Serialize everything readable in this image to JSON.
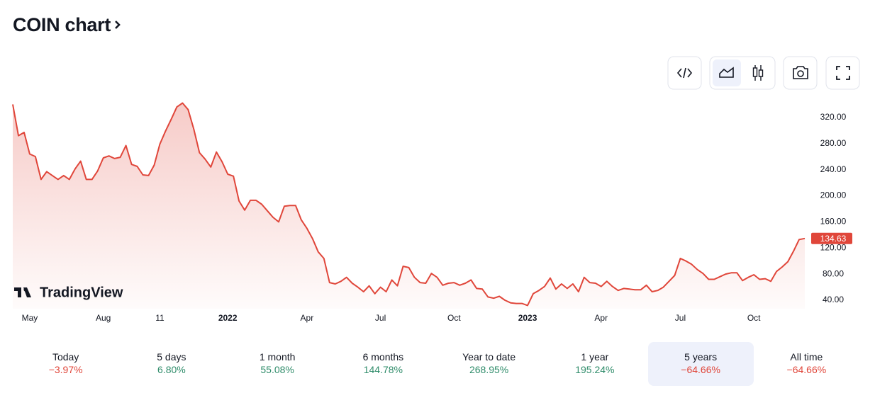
{
  "header": {
    "title": "COIN chart"
  },
  "branding": "TradingView",
  "chart_data": {
    "type": "area",
    "color": "#e0463a",
    "categories": [
      null,
      null,
      null,
      "May",
      null,
      null,
      null,
      null,
      null,
      null,
      null,
      null,
      null,
      null,
      null,
      null,
      "Aug",
      null,
      null,
      null,
      null,
      null,
      null,
      null,
      null,
      null,
      "11",
      null,
      null,
      null,
      null,
      null,
      null,
      null,
      null,
      null,
      null,
      null,
      "2022",
      null,
      null,
      null,
      null,
      null,
      null,
      null,
      null,
      null,
      null,
      null,
      null,
      null,
      "Apr",
      null,
      null,
      null,
      null,
      null,
      null,
      null,
      null,
      null,
      null,
      null,
      null,
      "Jul",
      null,
      null,
      null,
      null,
      null,
      null,
      null,
      null,
      null,
      null,
      null,
      null,
      "Oct",
      null,
      null,
      null,
      null,
      null,
      null,
      null,
      null,
      null,
      null,
      null,
      null,
      "2023",
      null,
      null,
      null,
      null,
      null,
      null,
      null,
      null,
      null,
      null,
      null,
      null,
      "Apr",
      null,
      null,
      null,
      null,
      null,
      null,
      null,
      null,
      null,
      null,
      null,
      null,
      null,
      "Jul",
      null,
      null,
      null,
      null,
      null,
      null,
      null,
      null,
      null,
      null,
      null,
      null,
      "Oct",
      null,
      null,
      null,
      null,
      null,
      null,
      null,
      null,
      null
    ],
    "values": [
      340,
      292,
      297,
      264,
      260,
      225,
      237,
      231,
      225,
      231,
      225,
      241,
      253,
      225,
      225,
      238,
      258,
      261,
      257,
      259,
      277,
      248,
      245,
      232,
      231,
      247,
      279,
      299,
      317,
      336,
      342,
      332,
      302,
      266,
      256,
      244,
      267,
      252,
      233,
      230,
      192,
      178,
      193,
      193,
      187,
      177,
      167,
      160,
      184,
      185,
      185,
      163,
      150,
      134,
      114,
      104,
      67,
      65,
      69,
      75,
      66,
      60,
      53,
      62,
      50,
      60,
      53,
      71,
      62,
      92,
      90,
      75,
      67,
      66,
      81,
      75,
      63,
      66,
      67,
      63,
      66,
      71,
      58,
      57,
      45,
      43,
      46,
      40,
      36,
      35,
      35,
      32,
      50,
      55,
      61,
      74,
      57,
      65,
      58,
      65,
      53,
      75,
      67,
      66,
      61,
      69,
      61,
      55,
      58,
      57,
      56,
      56,
      63,
      53,
      55,
      60,
      69,
      78,
      104,
      100,
      95,
      87,
      81,
      72,
      72,
      76,
      80,
      82,
      82,
      70,
      75,
      79,
      72,
      73,
      69,
      84,
      91,
      99,
      115,
      133,
      134.63
    ],
    "ylim": [
      27,
      348
    ],
    "yticks": [
      {
        "value": 40,
        "label": "40.00"
      },
      {
        "value": 80,
        "label": "80.00"
      },
      {
        "value": 120,
        "label": "120.00"
      },
      {
        "value": 160,
        "label": "160.00"
      },
      {
        "value": 200,
        "label": "200.00"
      },
      {
        "value": 240,
        "label": "240.00"
      },
      {
        "value": 280,
        "label": "280.00"
      },
      {
        "value": 320,
        "label": "320.00"
      }
    ]
  },
  "periods": [
    {
      "label": "Today",
      "change": "−3.97%",
      "color": "#e0463a"
    },
    {
      "label": "5 days",
      "change": "6.80%",
      "color": "#2f8c6a"
    },
    {
      "label": "1 month",
      "change": "55.08%",
      "color": "#2f8c6a"
    },
    {
      "label": "6 months",
      "change": "144.78%",
      "color": "#2f8c6a"
    },
    {
      "label": "Year to date",
      "change": "268.95%",
      "color": "#2f8c6a"
    },
    {
      "label": "1 year",
      "change": "195.24%",
      "color": "#2f8c6a"
    },
    {
      "label": "5 years",
      "change": "−64.66%",
      "color": "#e0463a",
      "active": true
    },
    {
      "label": "All time",
      "change": "−64.66%",
      "color": "#e0463a"
    }
  ]
}
